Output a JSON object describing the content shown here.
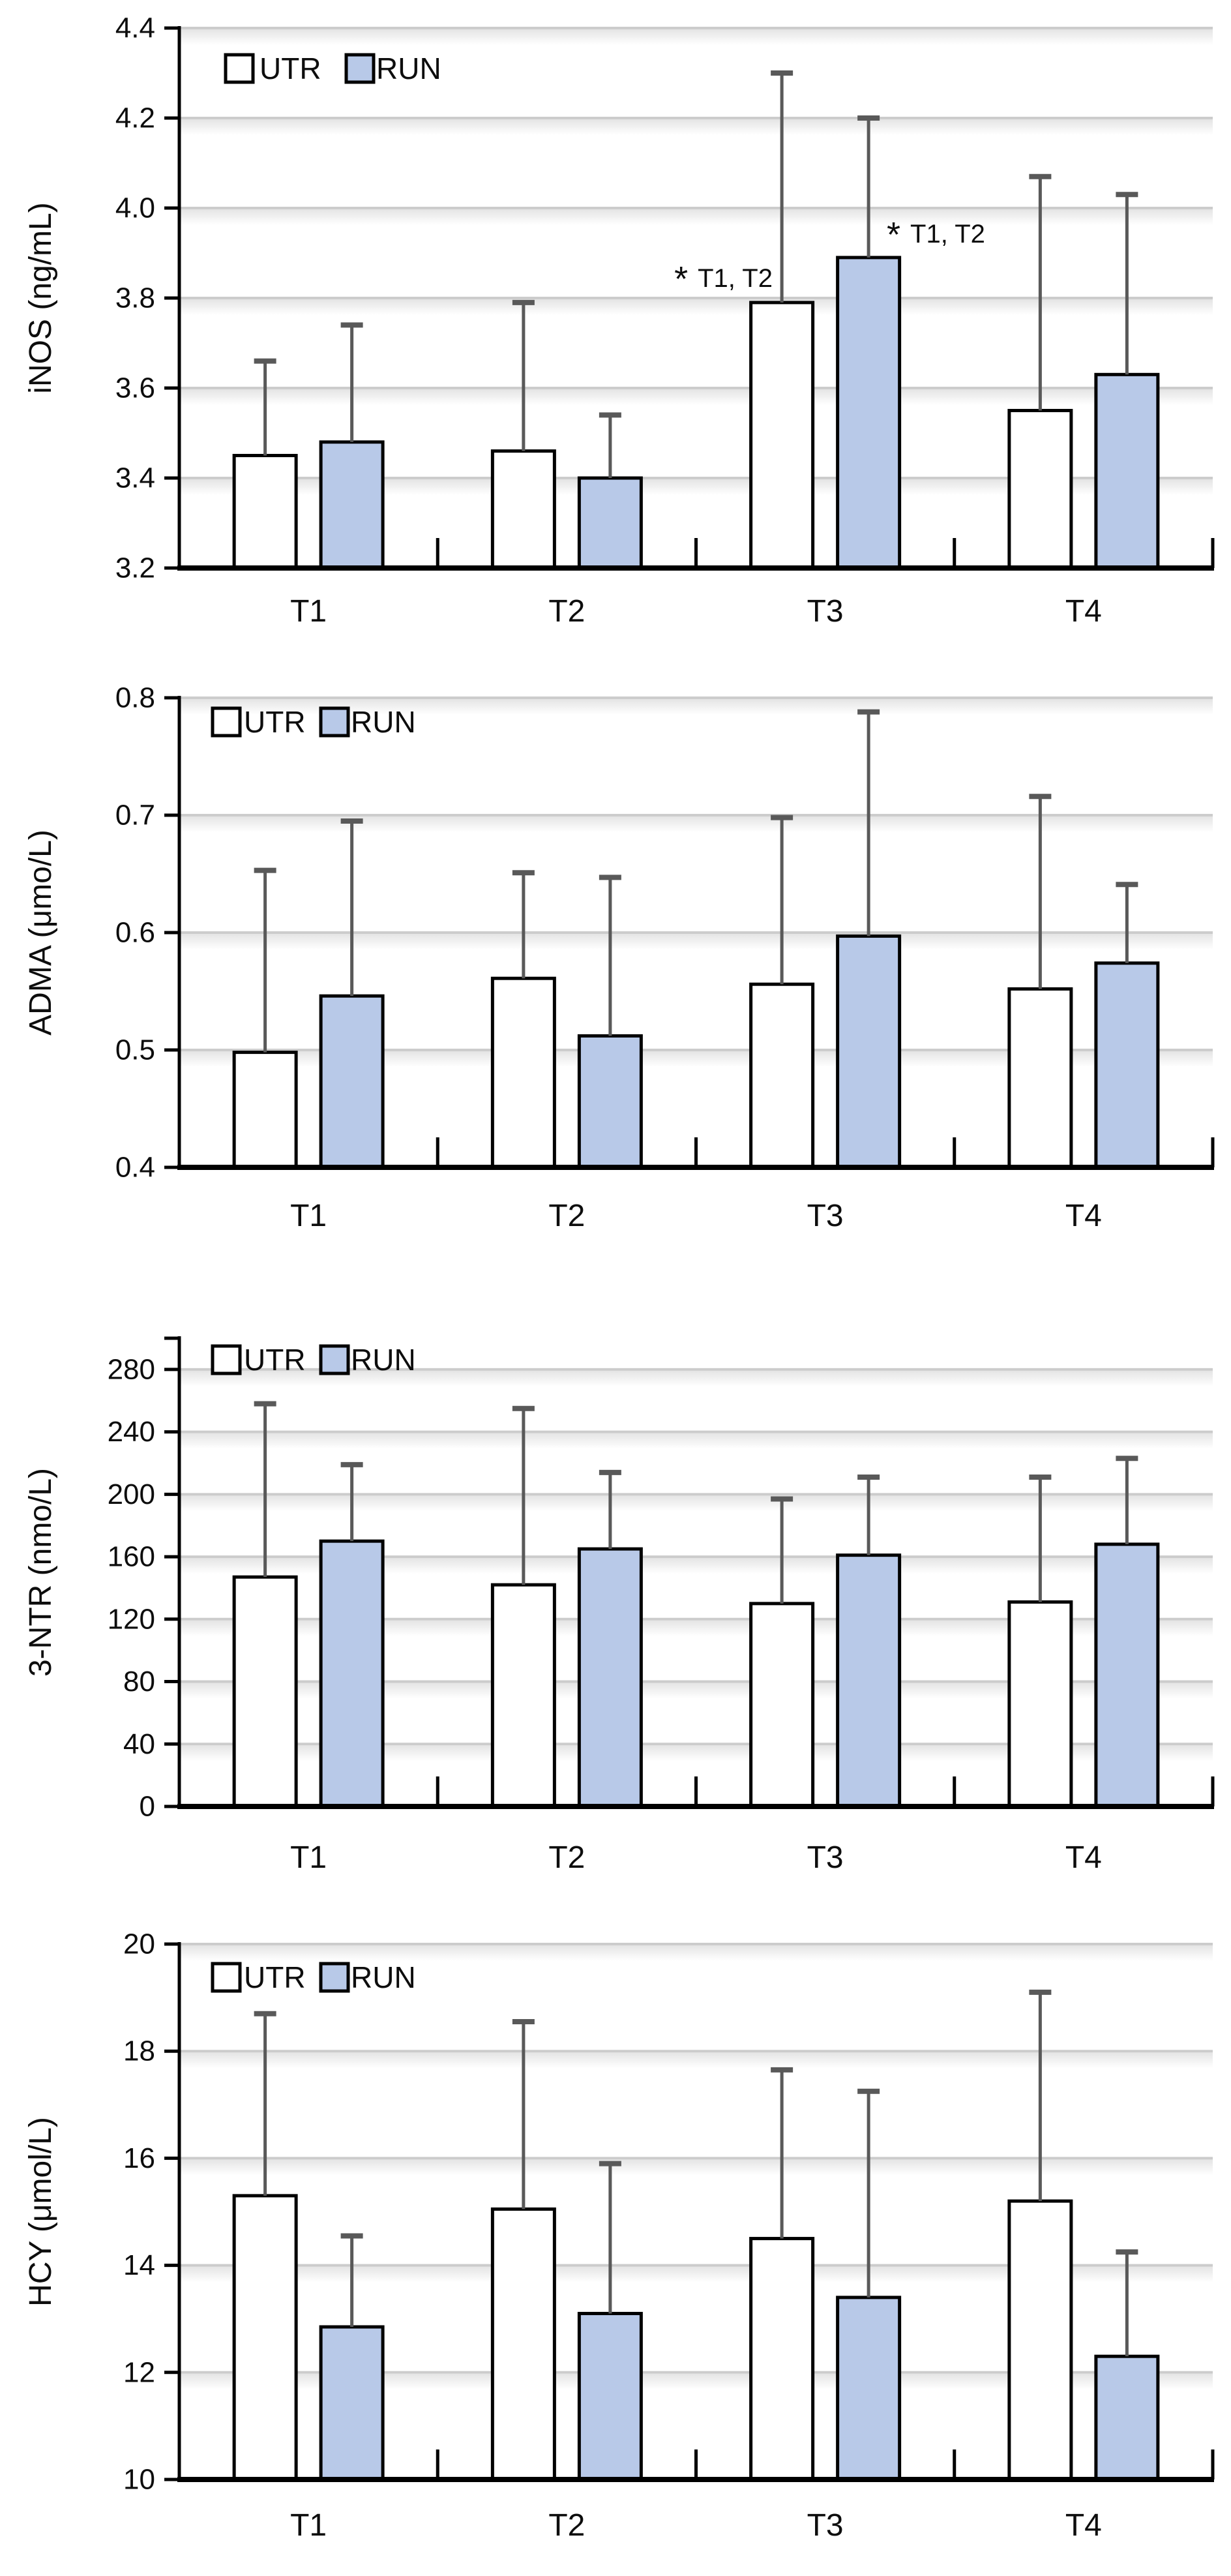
{
  "figure": {
    "background": "#ffffff",
    "description": "Four stacked bar charts comparing UTR and RUN groups at time points T1-T4"
  },
  "style": {
    "utr_fill": "#ffffff",
    "run_fill": "#b8c9e8",
    "bar_border": "#000000",
    "error_color": "#595959",
    "grid_color": "#cccccc",
    "axis_color": "#000000",
    "text_color": "#0d0d0d"
  },
  "legend": {
    "items": [
      {
        "label": "UTR",
        "fill": "#ffffff"
      },
      {
        "label": "RUN",
        "fill": "#b8c9e8"
      }
    ]
  },
  "chart_data": [
    {
      "id": "inos",
      "type": "bar",
      "title": "",
      "ylabel": "iNOS (ng/mL)",
      "xlabel": "",
      "categories": [
        "T1",
        "T2",
        "T3",
        "T4"
      ],
      "ylim": [
        3.2,
        4.4
      ],
      "ytick_labels": [
        "4.4",
        "4.2",
        "4.0",
        "3.8",
        "3.6",
        "3.4",
        "3.2"
      ],
      "grid": true,
      "legend_position": "top-left",
      "series": [
        {
          "name": "UTR",
          "values": [
            3.45,
            3.46,
            3.79,
            3.55
          ],
          "error_top": [
            3.66,
            3.79,
            4.3,
            4.07
          ]
        },
        {
          "name": "RUN",
          "values": [
            3.48,
            3.4,
            3.89,
            3.63
          ],
          "error_top": [
            3.74,
            3.54,
            4.2,
            4.03
          ]
        }
      ],
      "annotations": [
        {
          "star": "*",
          "label": "T1, T2",
          "attached_to": "T3 UTR"
        },
        {
          "star": "*",
          "label": "T1, T2",
          "attached_to": "T3 RUN"
        }
      ]
    },
    {
      "id": "adma",
      "type": "bar",
      "title": "",
      "ylabel": "ADMA (μmo/L)",
      "xlabel": "",
      "categories": [
        "T1",
        "T2",
        "T3",
        "T4"
      ],
      "ylim": [
        0.4,
        0.8
      ],
      "ytick_labels": [
        "0.8",
        "0.7",
        "0.6",
        "0.5",
        "0.4"
      ],
      "grid": true,
      "legend_position": "top-left",
      "series": [
        {
          "name": "UTR",
          "values": [
            0.498,
            0.561,
            0.556,
            0.552
          ],
          "error_top": [
            0.653,
            0.651,
            0.698,
            0.716
          ]
        },
        {
          "name": "RUN",
          "values": [
            0.546,
            0.512,
            0.597,
            0.574
          ],
          "error_top": [
            0.695,
            0.647,
            0.788,
            0.641
          ]
        }
      ],
      "annotations": []
    },
    {
      "id": "3ntr",
      "type": "bar",
      "title": "",
      "ylabel": "3-NTR (nmo/L)",
      "xlabel": "",
      "categories": [
        "T1",
        "T2",
        "T3",
        "T4"
      ],
      "ylim": [
        0,
        300
      ],
      "ytick_labels": [
        "280",
        "240",
        "200",
        "160",
        "120",
        "80",
        "40",
        "0"
      ],
      "grid": true,
      "legend_position": "top-left",
      "series": [
        {
          "name": "UTR",
          "values": [
            147,
            142,
            130,
            131
          ],
          "error_top": [
            258,
            255,
            197,
            211
          ]
        },
        {
          "name": "RUN",
          "values": [
            170,
            165,
            161,
            168
          ],
          "error_top": [
            219,
            214,
            211,
            223
          ]
        }
      ],
      "annotations": []
    },
    {
      "id": "hcy",
      "type": "bar",
      "title": "",
      "ylabel": "HCY (μmol/L)",
      "xlabel": "",
      "categories": [
        "T1",
        "T2",
        "T3",
        "T4"
      ],
      "ylim": [
        10,
        20
      ],
      "ytick_labels": [
        "20",
        "18",
        "16",
        "14",
        "12",
        "10"
      ],
      "grid": true,
      "legend_position": "top-left",
      "series": [
        {
          "name": "UTR",
          "values": [
            15.3,
            15.05,
            14.5,
            15.2
          ],
          "error_top": [
            18.7,
            18.55,
            17.65,
            19.1
          ]
        },
        {
          "name": "RUN",
          "values": [
            12.85,
            13.1,
            13.4,
            12.3
          ],
          "error_top": [
            14.55,
            15.9,
            17.25,
            14.25
          ]
        }
      ],
      "annotations": []
    }
  ]
}
